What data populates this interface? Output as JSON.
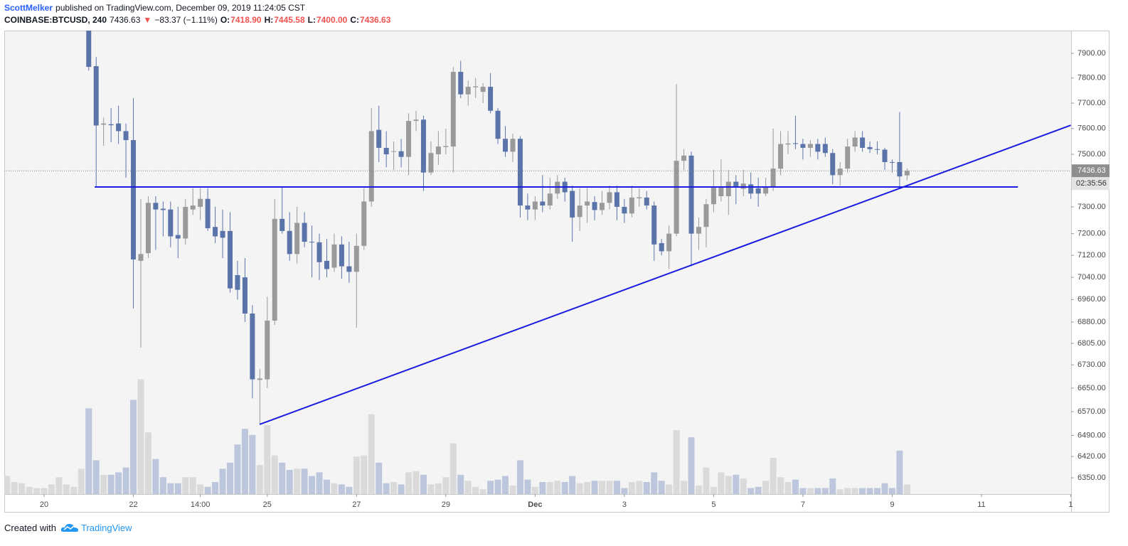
{
  "header": {
    "author": "ScottMelker",
    "published": "published on TradingView.com, December 09, 2019 11:24:05 CST",
    "symbol": "COINBASE:BTCUSD, 240",
    "price": "7436.63",
    "arrow": "▼",
    "change": "−83.37 (−1.11%)",
    "ohlc": [
      {
        "label": "O:",
        "value": "7418.90"
      },
      {
        "label": "H:",
        "value": "7445.58"
      },
      {
        "label": "L:",
        "value": "7400.00"
      },
      {
        "label": "C:",
        "value": "7436.63"
      }
    ]
  },
  "chart_data": {
    "type": "candlestick",
    "log_scale": true,
    "grid": false,
    "categories": [
      null,
      null,
      null,
      null,
      null,
      "20",
      null,
      null,
      null,
      null,
      null,
      null,
      null,
      null,
      null,
      null,
      null,
      "22",
      null,
      null,
      null,
      null,
      null,
      null,
      null,
      null,
      "14:00",
      null,
      null,
      null,
      null,
      null,
      null,
      null,
      null,
      "25",
      null,
      null,
      null,
      null,
      null,
      null,
      null,
      null,
      null,
      null,
      null,
      "27",
      null,
      null,
      null,
      null,
      null,
      null,
      null,
      null,
      null,
      null,
      null,
      "29",
      null,
      null,
      null,
      null,
      null,
      null,
      null,
      null,
      null,
      null,
      null,
      "Dec",
      null,
      null,
      null,
      null,
      null,
      null,
      null,
      null,
      null,
      null,
      null,
      "3",
      null,
      null,
      null,
      null,
      null,
      null,
      null,
      null,
      null,
      null,
      null,
      "5",
      null,
      null,
      null,
      null,
      null,
      null,
      null,
      null,
      null,
      null,
      null,
      "7",
      null,
      null,
      null,
      null,
      null,
      null,
      null,
      null,
      null,
      null,
      null,
      "9",
      null,
      null,
      null,
      null,
      null,
      null,
      null,
      null,
      null,
      null,
      null,
      "11",
      null,
      null,
      null,
      null,
      null,
      null,
      null,
      null,
      null,
      null,
      null,
      "1"
    ],
    "open": [
      null,
      null,
      null,
      null,
      null,
      null,
      null,
      null,
      null,
      null,
      null,
      8050,
      7848,
      7615,
      7617,
      7620,
      7590,
      7555,
      7100,
      7128,
      7315,
      7293,
      7290,
      7195,
      7182,
      7290,
      7300,
      7330,
      7225,
      7210,
      7210,
      7048,
      7040,
      6910,
      6678,
      6680,
      6885,
      7255,
      7210,
      7125,
      7240,
      7170,
      7168,
      7100,
      7075,
      7160,
      7080,
      7060,
      7155,
      7320,
      7595,
      7525,
      7510,
      7512,
      7490,
      7630,
      7635,
      7430,
      7500,
      7528,
      7530,
      7825,
      7735,
      7763,
      7745,
      7765,
      7670,
      7560,
      7510,
      7560,
      7305,
      7290,
      7320,
      7305,
      7350,
      7395,
      7360,
      7262,
      7305,
      7318,
      7288,
      7315,
      7355,
      7300,
      7275,
      7332,
      7335,
      7305,
      7165,
      7135,
      7200,
      7475,
      7495,
      7200,
      7225,
      7310,
      7340,
      7340,
      7395,
      7368,
      7385,
      7370,
      7350,
      7375,
      7445,
      7538,
      7543,
      7540,
      7525,
      7540,
      7540,
      7505,
      7420,
      7445,
      7530,
      7565,
      7528,
      7520,
      7518,
      7470,
      7470,
      7418.9,
      null,
      null,
      null,
      null,
      null,
      null,
      null,
      null,
      null,
      null,
      null,
      null,
      null,
      null,
      null,
      null,
      null,
      null,
      null,
      null,
      null,
      null
    ],
    "high": [
      null,
      null,
      null,
      null,
      null,
      null,
      null,
      null,
      null,
      null,
      null,
      8100,
      7885,
      7643,
      7680,
      7690,
      7620,
      7720,
      7330,
      7340,
      7340,
      7320,
      7320,
      7300,
      7330,
      7370,
      7370,
      7370,
      7300,
      7290,
      7280,
      7100,
      7110,
      6940,
      6715,
      6970,
      7330,
      7375,
      7280,
      7300,
      7280,
      7230,
      7200,
      7180,
      7200,
      7190,
      7170,
      7200,
      7370,
      7680,
      7690,
      7590,
      7550,
      7560,
      7660,
      7670,
      7650,
      7550,
      7590,
      7600,
      7845,
      7870,
      7790,
      7800,
      7780,
      7820,
      7680,
      7610,
      7580,
      7570,
      7350,
      7340,
      7420,
      7410,
      7420,
      7410,
      7380,
      7370,
      7370,
      7340,
      7360,
      7380,
      7380,
      7330,
      7380,
      7370,
      7360,
      7320,
      7180,
      7230,
      7776,
      7520,
      7510,
      7260,
      7330,
      7440,
      7480,
      7440,
      7420,
      7440,
      7430,
      7410,
      7410,
      7600,
      7590,
      7590,
      7650,
      7560,
      7555,
      7560,
      7565,
      7520,
      7470,
      7560,
      7590,
      7590,
      7550,
      7550,
      7525,
      7480,
      7665,
      7445.58,
      null,
      null,
      null,
      null,
      null,
      null,
      null,
      null,
      null,
      null,
      null,
      null,
      null,
      null,
      null,
      null,
      null,
      null,
      null,
      null,
      null,
      null
    ],
    "low": [
      null,
      null,
      null,
      null,
      null,
      null,
      null,
      null,
      null,
      null,
      null,
      7830,
      7375,
      7533,
      7547,
      7540,
      7410,
      6928,
      6790,
      7110,
      7140,
      7190,
      7150,
      7110,
      7160,
      7270,
      7250,
      7210,
      7165,
      7110,
      6985,
      6960,
      6880,
      6615,
      6527,
      6650,
      6870,
      7200,
      7100,
      7090,
      7150,
      7040,
      7030,
      7040,
      7060,
      7035,
      7020,
      6860,
      7140,
      7300,
      7470,
      7450,
      7440,
      7450,
      7420,
      7590,
      7360,
      7420,
      7460,
      7500,
      7430,
      7720,
      7690,
      7720,
      7700,
      7660,
      7540,
      7490,
      7470,
      7260,
      7250,
      7250,
      7280,
      7290,
      7330,
      7320,
      7170,
      7210,
      7240,
      7250,
      7270,
      7290,
      7250,
      7240,
      7260,
      7300,
      7290,
      7100,
      7120,
      7070,
      7190,
      7440,
      7080,
      7140,
      7150,
      7280,
      7320,
      7270,
      7310,
      7340,
      7330,
      7300,
      7340,
      7360,
      7420,
      7500,
      7520,
      7480,
      7490,
      7480,
      7490,
      7385,
      7380,
      7430,
      7510,
      7510,
      7505,
      7500,
      7440,
      7430,
      7375,
      7400,
      null,
      null,
      null,
      null,
      null,
      null,
      null,
      null,
      null,
      null,
      null,
      null,
      null,
      null,
      null,
      null,
      null,
      null,
      null,
      null,
      null,
      null
    ],
    "close": [
      null,
      null,
      null,
      null,
      null,
      null,
      null,
      null,
      null,
      null,
      null,
      7845,
      7612,
      7620,
      7613,
      7590,
      7555,
      7105,
      7125,
      7315,
      7290,
      7288,
      7190,
      7182,
      7300,
      7305,
      7330,
      7220,
      7190,
      7185,
      7000,
      6995,
      6910,
      6680,
      6683,
      6885,
      7255,
      7210,
      7125,
      7240,
      7170,
      7168,
      7095,
      7070,
      7160,
      7080,
      7060,
      7155,
      7320,
      7590,
      7525,
      7500,
      7512,
      7490,
      7630,
      7635,
      7430,
      7505,
      7530,
      7532,
      7825,
      7735,
      7765,
      7767,
      7765,
      7670,
      7560,
      7510,
      7560,
      7305,
      7290,
      7320,
      7305,
      7350,
      7395,
      7355,
      7260,
      7305,
      7320,
      7288,
      7315,
      7355,
      7300,
      7275,
      7335,
      7336,
      7305,
      7160,
      7135,
      7200,
      7475,
      7495,
      7200,
      7225,
      7310,
      7372,
      7372,
      7395,
      7378,
      7388,
      7350,
      7350,
      7375,
      7445,
      7540,
      7542,
      7540,
      7525,
      7540,
      7510,
      7505,
      7420,
      7445,
      7530,
      7565,
      7525,
      7520,
      7518,
      7470,
      7468,
      7415,
      7436.63,
      null,
      null,
      null,
      null,
      null,
      null,
      null,
      null,
      null,
      null,
      null,
      null,
      null,
      null,
      null,
      null,
      null,
      null,
      null,
      null,
      null,
      null
    ],
    "volume": [
      15,
      10,
      9,
      6,
      5,
      5,
      8,
      14,
      8,
      6,
      21,
      71,
      28,
      16,
      16,
      18,
      22,
      78,
      95,
      51,
      29,
      14,
      9,
      9,
      14,
      14,
      8,
      6,
      10,
      21,
      26,
      41,
      54,
      49,
      24,
      57,
      32,
      26,
      20,
      21,
      21,
      15,
      18,
      12,
      9,
      8,
      6,
      31,
      32,
      66,
      26,
      9,
      10,
      8,
      18,
      19,
      16,
      8,
      9,
      14,
      42,
      16,
      11,
      6,
      4,
      11,
      12,
      15,
      7,
      28,
      12,
      6,
      10,
      10,
      11,
      10,
      15,
      9,
      10,
      11,
      11,
      11,
      11,
      5,
      10,
      11,
      10,
      18,
      11,
      8,
      53,
      11,
      47,
      7,
      22,
      6,
      18,
      15,
      16,
      13,
      5,
      6,
      11,
      30,
      14,
      10,
      12,
      5,
      5,
      5,
      5,
      13,
      4,
      5,
      5,
      5,
      5,
      5,
      9,
      5,
      36,
      8,
      null,
      null,
      null,
      null,
      null,
      null,
      null,
      null,
      null,
      null,
      null,
      null,
      null,
      null,
      null,
      null,
      null,
      null,
      null,
      null,
      null,
      null
    ],
    "volume_lim": [
      0,
      100
    ],
    "up_color": "#9a9a9a",
    "down_color": "#5a74aa",
    "volume_up_color": "#dadada",
    "volume_down_color": "#bcc6dc",
    "ylim": [
      6297,
      7993
    ],
    "yticks": [
      {
        "value": 7900,
        "label": "7900.00"
      },
      {
        "value": 7800,
        "label": "7800.00"
      },
      {
        "value": 7700,
        "label": "7700.00"
      },
      {
        "value": 7600,
        "label": "7600.00"
      },
      {
        "value": 7500,
        "label": "7500.00"
      },
      {
        "value": 7300,
        "label": "7300.00"
      },
      {
        "value": 7200,
        "label": "7200.00"
      },
      {
        "value": 7120,
        "label": "7120.00"
      },
      {
        "value": 7040,
        "label": "7040.00"
      },
      {
        "value": 6960,
        "label": "6960.00"
      },
      {
        "value": 6880,
        "label": "6880.00"
      },
      {
        "value": 6805,
        "label": "6805.00"
      },
      {
        "value": 6730,
        "label": "6730.00"
      },
      {
        "value": 6650,
        "label": "6650.00"
      },
      {
        "value": 6570,
        "label": "6570.00"
      },
      {
        "value": 6490,
        "label": "6490.00"
      },
      {
        "value": 6420,
        "label": "6420.00"
      },
      {
        "value": 6350,
        "label": "6350.00"
      }
    ],
    "last_price": 7436.63,
    "countdown": "02:35:56",
    "drawings": [
      {
        "color": "#1c1ce0",
        "x": [
          11.8,
          135.9
        ],
        "y": [
          7375,
          7375
        ]
      },
      {
        "color": "#1c1ce0",
        "x": [
          33.97,
          143
        ],
        "y": [
          6527,
          7613
        ]
      }
    ]
  },
  "footer": {
    "created": "Created with",
    "brand": "TradingView"
  }
}
